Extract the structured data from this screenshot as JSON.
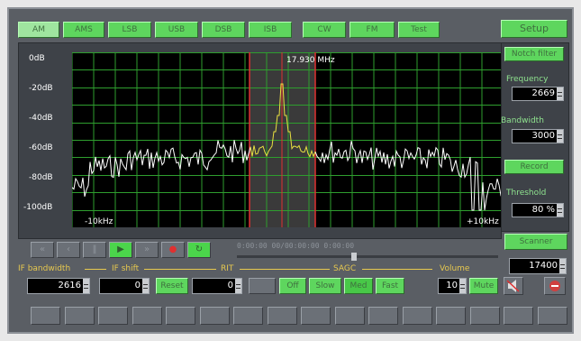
{
  "mode_buttons": [
    "AM",
    "AMS",
    "LSB",
    "USB",
    "DSB",
    "ISB",
    "CW",
    "FM",
    "Test",
    "Setup"
  ],
  "setup_label": "Setup",
  "spectrum": {
    "center_label": "17.930 MHz",
    "db_labels": [
      "0dB",
      "-20dB",
      "-40dB",
      "-60dB",
      "-80dB",
      "-100dB"
    ],
    "left_freq": "-10kHz",
    "right_freq": "+10kHz"
  },
  "right_panel": {
    "notch_btn": "Notch filter",
    "frequency_label": "Frequency",
    "frequency_value": "2669",
    "bandwidth_label": "Bandwidth",
    "bandwidth_value": "3000",
    "record_btn": "Record",
    "threshold_label": "Threshold",
    "threshold_value": "80 %",
    "scan_btn": "Scanner",
    "step_value": "17400"
  },
  "transport": {
    "time_text": "0:00:00 00/00:00:00 0:00:00"
  },
  "bottom_labels": {
    "if_bandwidth": "IF bandwidth",
    "if_shift": "IF shift",
    "rit": "RIT",
    "sagc": "SAGC",
    "volume": "Volume"
  },
  "bottom_values": {
    "if_bandwidth": "2616",
    "if_shift": "0",
    "rit": "0",
    "volume": "10"
  },
  "bottom_buttons": {
    "reset": "Reset",
    "agc_off": "Off",
    "agc_slow": "Slow",
    "agc_med": "Med",
    "agc_fast": "Fast",
    "mute": "Mute"
  },
  "preset_count": 16,
  "colors": {
    "panel": "#5a5e64",
    "accent_green": "#5ed65e",
    "grid_green": "#2e9e2e",
    "passband": "#3a3a3a",
    "marker_red": "#e03030",
    "signal_yellow": "#e8e040"
  }
}
